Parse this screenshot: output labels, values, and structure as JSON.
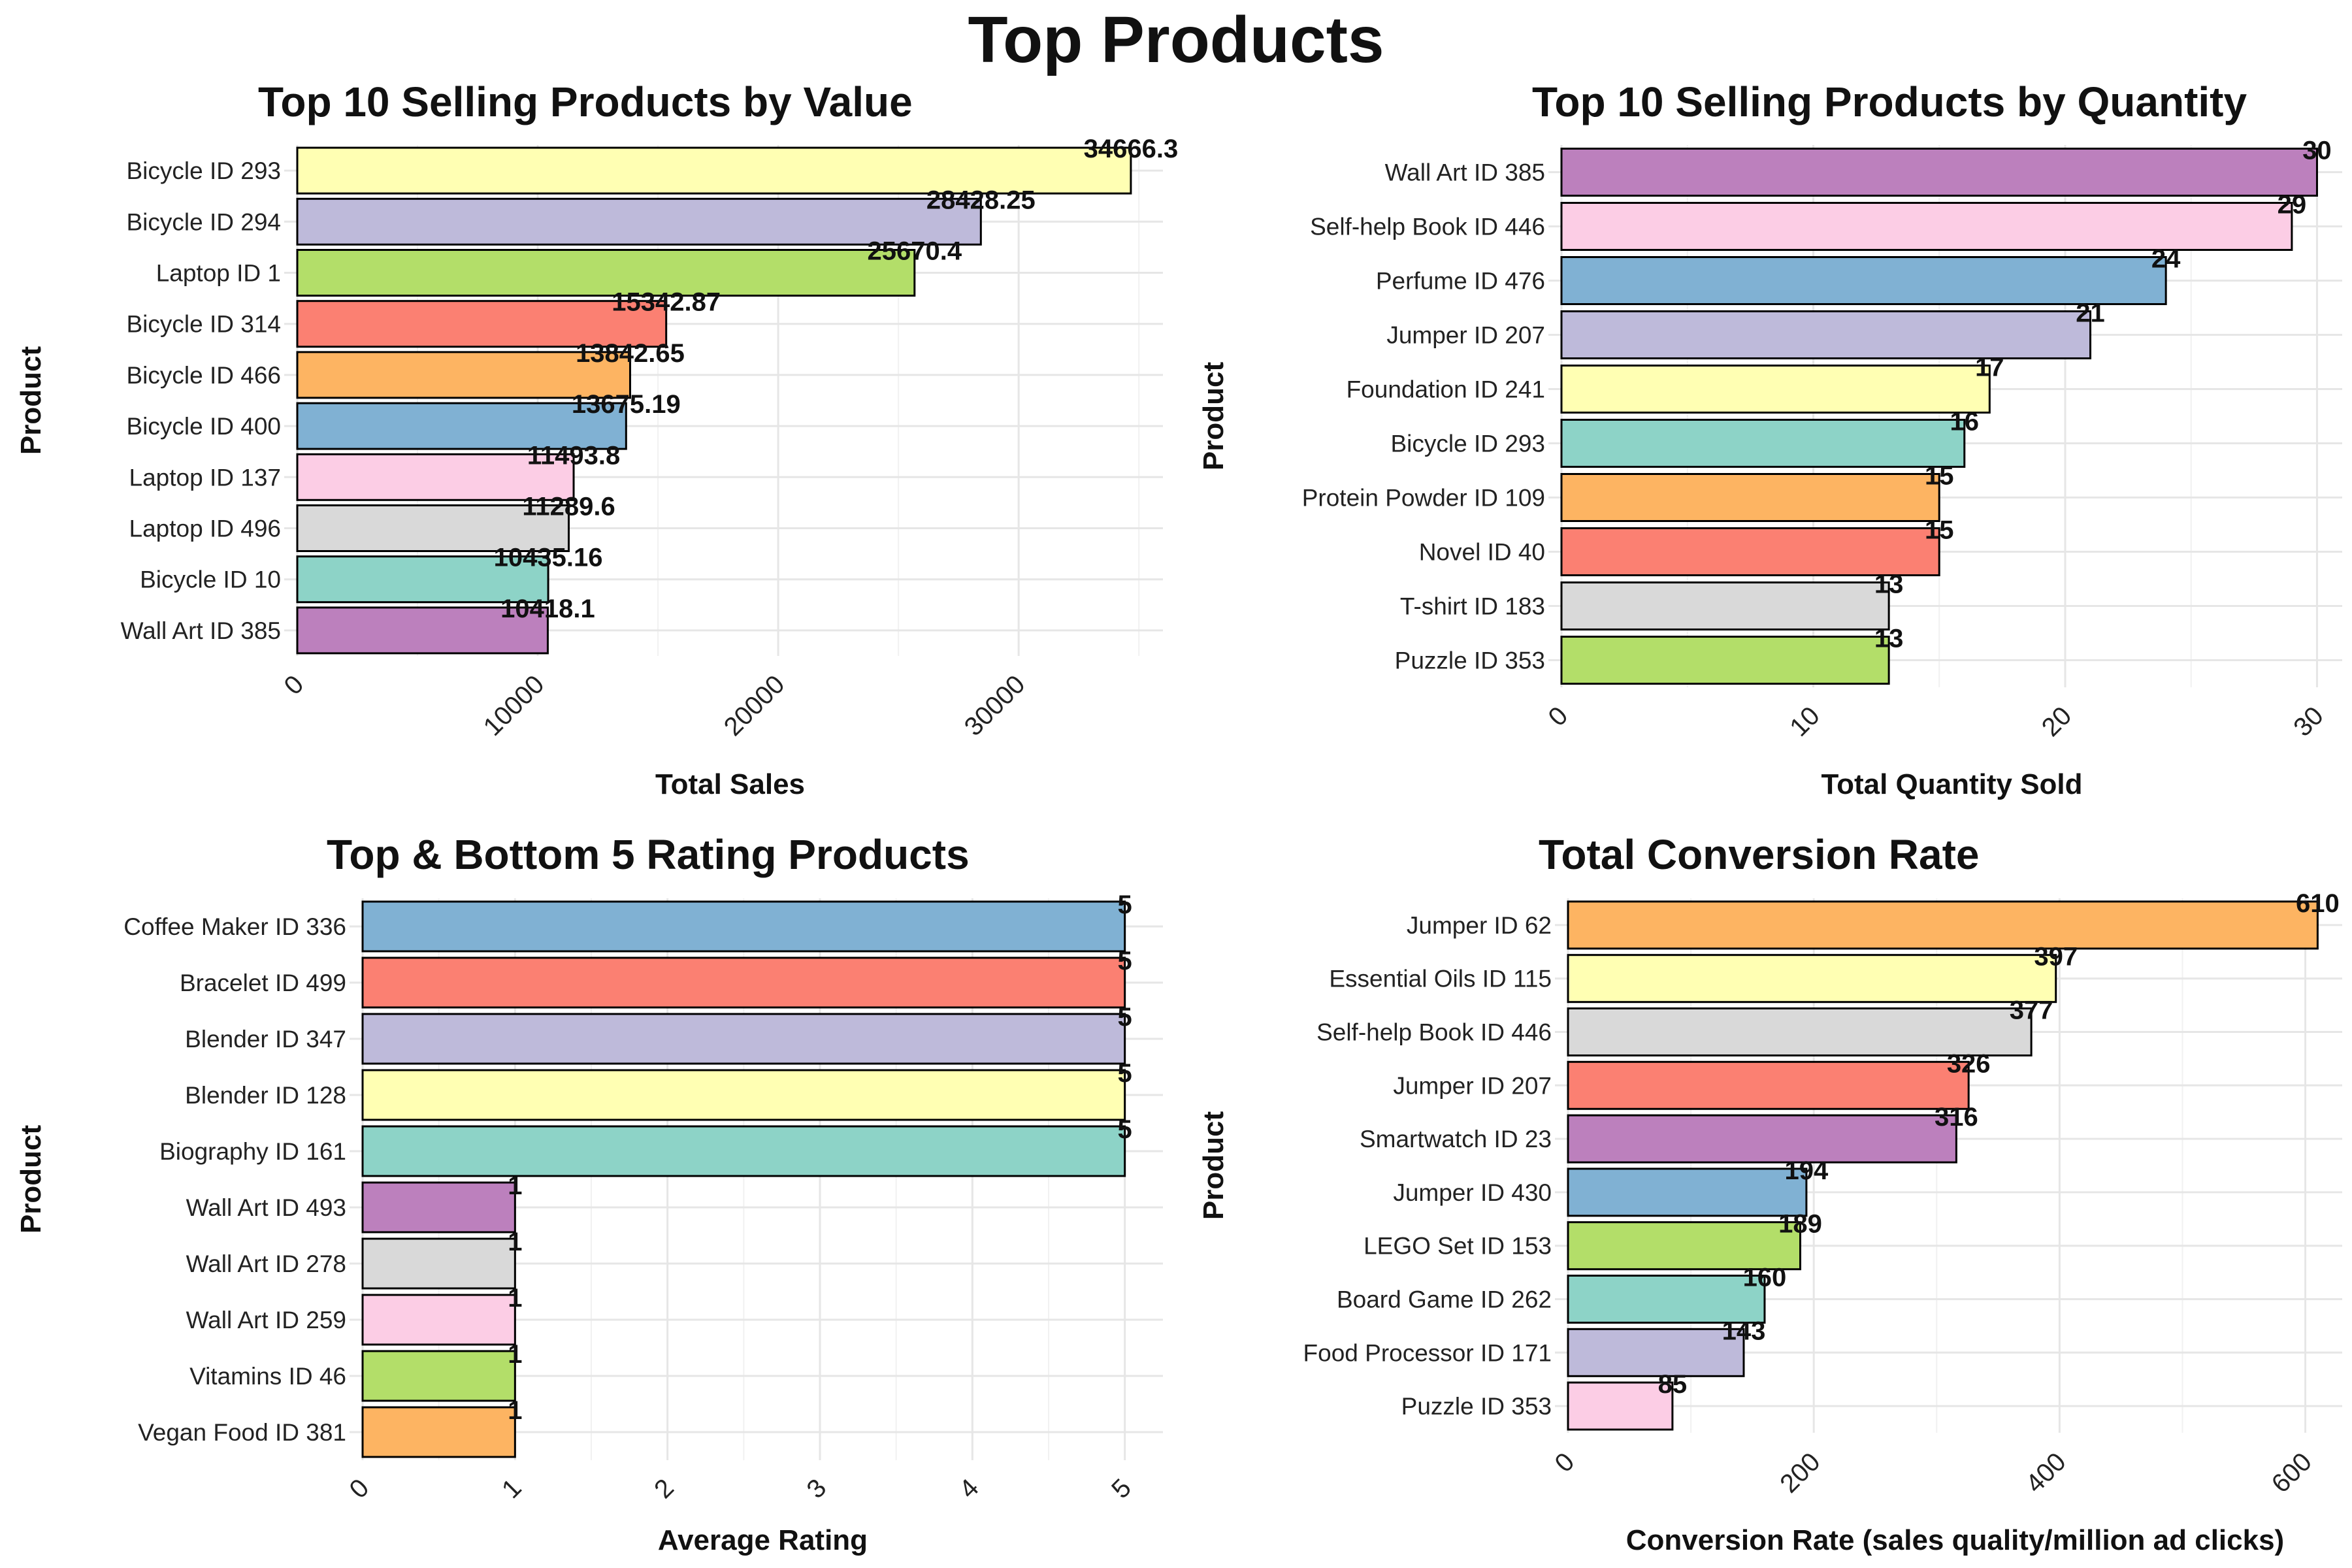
{
  "title": "Top Products",
  "chart_data": [
    {
      "type": "bar",
      "orientation": "horizontal",
      "title": "Top 10 Selling Products by Value",
      "xlabel": "Total Sales",
      "ylabel": "Product",
      "xlim": [
        0,
        36000
      ],
      "x_ticks": [
        0,
        10000,
        20000,
        30000
      ],
      "grid": true,
      "categories": [
        "Bicycle ID 293",
        "Bicycle ID 294",
        "Laptop ID 1",
        "Bicycle ID 314",
        "Bicycle ID 466",
        "Bicycle ID 400",
        "Laptop ID 137",
        "Laptop ID 496",
        "Bicycle ID 10",
        "Wall Art ID 385"
      ],
      "values": [
        34666.3,
        28428.25,
        25670.4,
        15342.87,
        13842.65,
        13675.19,
        11493.8,
        11289.6,
        10435.16,
        10418.1
      ],
      "labels": [
        "34666.3",
        "28428.25",
        "25670.4",
        "15342.87",
        "13842.65",
        "13675.19",
        "11493.8",
        "11289.6",
        "10435.16",
        "10418.1"
      ],
      "colors": [
        "#FFFFB3",
        "#BEBADA",
        "#B3DE69",
        "#FB8072",
        "#FDB462",
        "#80B1D3",
        "#FCCDE5",
        "#D9D9D9",
        "#8DD3C7",
        "#BC80BD"
      ]
    },
    {
      "type": "bar",
      "orientation": "horizontal",
      "title": "Top 10 Selling Products by Quantity",
      "xlabel": "Total Quantity Sold",
      "ylabel": "Product",
      "xlim": [
        0,
        31
      ],
      "x_ticks": [
        0,
        10,
        20,
        30
      ],
      "grid": true,
      "categories": [
        "Wall Art ID 385",
        "Self-help Book ID 446",
        "Perfume ID 476",
        "Jumper ID 207",
        "Foundation ID 241",
        "Bicycle ID 293",
        "Protein Powder ID 109",
        "Novel ID 40",
        "T-shirt ID 183",
        "Puzzle ID 353"
      ],
      "values": [
        30,
        29,
        24,
        21,
        17,
        16,
        15,
        15,
        13,
        13
      ],
      "labels": [
        "30",
        "29",
        "24",
        "21",
        "17",
        "16",
        "15",
        "15",
        "13",
        "13"
      ],
      "colors": [
        "#BC80BD",
        "#FCCDE5",
        "#80B1D3",
        "#BEBADA",
        "#FFFFB3",
        "#8DD3C7",
        "#FDB462",
        "#FB8072",
        "#D9D9D9",
        "#B3DE69"
      ]
    },
    {
      "type": "bar",
      "orientation": "horizontal",
      "title": "Top & Bottom 5 Rating Products",
      "xlabel": "Average Rating",
      "ylabel": "Product",
      "xlim": [
        0,
        5.25
      ],
      "x_ticks": [
        0,
        1,
        2,
        3,
        4,
        5
      ],
      "grid": true,
      "categories": [
        "Coffee Maker ID 336",
        "Bracelet ID 499",
        "Blender ID 347",
        "Blender ID 128",
        "Biography ID 161",
        "Wall Art ID 493",
        "Wall Art ID 278",
        "Wall Art ID 259",
        "Vitamins ID 46",
        "Vegan Food ID 381"
      ],
      "values": [
        5,
        5,
        5,
        5,
        5,
        1,
        1,
        1,
        1,
        1
      ],
      "labels": [
        "5",
        "5",
        "5",
        "5",
        "5",
        "1",
        "1",
        "1",
        "1",
        "1"
      ],
      "colors": [
        "#80B1D3",
        "#FB8072",
        "#BEBADA",
        "#FFFFB3",
        "#8DD3C7",
        "#BC80BD",
        "#D9D9D9",
        "#FCCDE5",
        "#B3DE69",
        "#FDB462"
      ]
    },
    {
      "type": "bar",
      "orientation": "horizontal",
      "title": "Total Conversion Rate",
      "xlabel": "Conversion Rate (sales quality/million ad clicks)",
      "ylabel": "Product",
      "xlim": [
        0,
        630
      ],
      "x_ticks": [
        0,
        200,
        400,
        600
      ],
      "grid": true,
      "categories": [
        "Jumper ID 62",
        "Essential Oils ID 115",
        "Self-help Book ID 446",
        "Jumper ID 207",
        "Smartwatch ID 23",
        "Jumper ID 430",
        "LEGO Set ID 153",
        "Board Game ID 262",
        "Food Processor ID 171",
        "Puzzle ID 353"
      ],
      "values": [
        610,
        397,
        377,
        326,
        316,
        194,
        189,
        160,
        143,
        85
      ],
      "labels": [
        "610",
        "397",
        "377",
        "326",
        "316",
        "194",
        "189",
        "160",
        "143",
        "85"
      ],
      "colors": [
        "#FDB462",
        "#FFFFB3",
        "#D9D9D9",
        "#FB8072",
        "#BC80BD",
        "#80B1D3",
        "#B3DE69",
        "#8DD3C7",
        "#BEBADA",
        "#FCCDE5"
      ]
    }
  ]
}
